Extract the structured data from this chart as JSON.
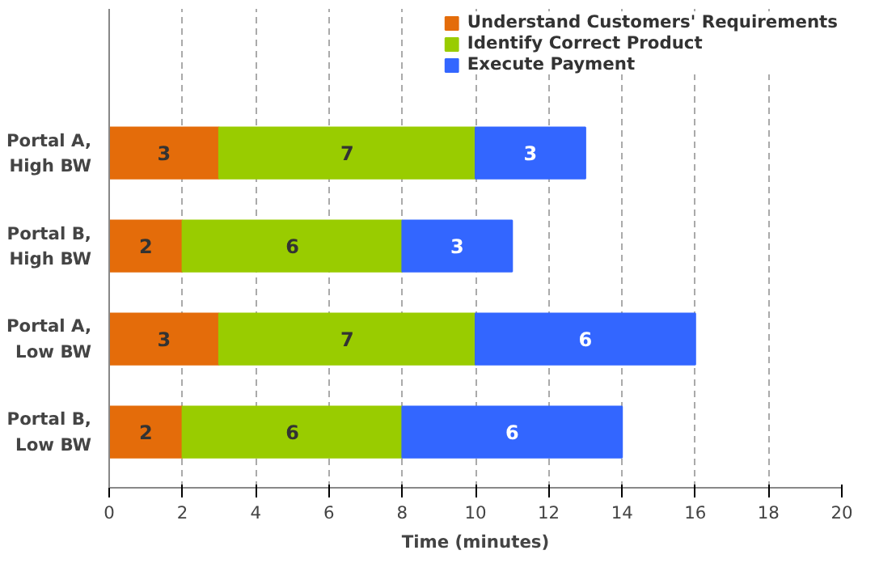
{
  "chart_data": {
    "type": "bar",
    "orientation": "horizontal",
    "stacked": true,
    "xlabel": "Time (minutes)",
    "categories": [
      "Portal A,\nHigh BW",
      "Portal B,\nHigh BW",
      "Portal A,\nLow BW",
      "Portal B,\nLow BW"
    ],
    "series": [
      {
        "name": "Understand Customers' Requirements",
        "color": "#e46c0a",
        "values": [
          3,
          2,
          3,
          2
        ]
      },
      {
        "name": "Identify Correct Product",
        "color": "#99cc00",
        "values": [
          7,
          6,
          7,
          6
        ]
      },
      {
        "name": "Execute Payment",
        "color": "#3366ff",
        "values": [
          3,
          3,
          6,
          6
        ]
      }
    ],
    "xlim": [
      0,
      20
    ],
    "xticks": [
      0,
      2,
      4,
      6,
      8,
      10,
      12,
      14,
      16,
      18,
      20
    ],
    "grid": "x",
    "legend": "top right",
    "data_labels": true
  }
}
